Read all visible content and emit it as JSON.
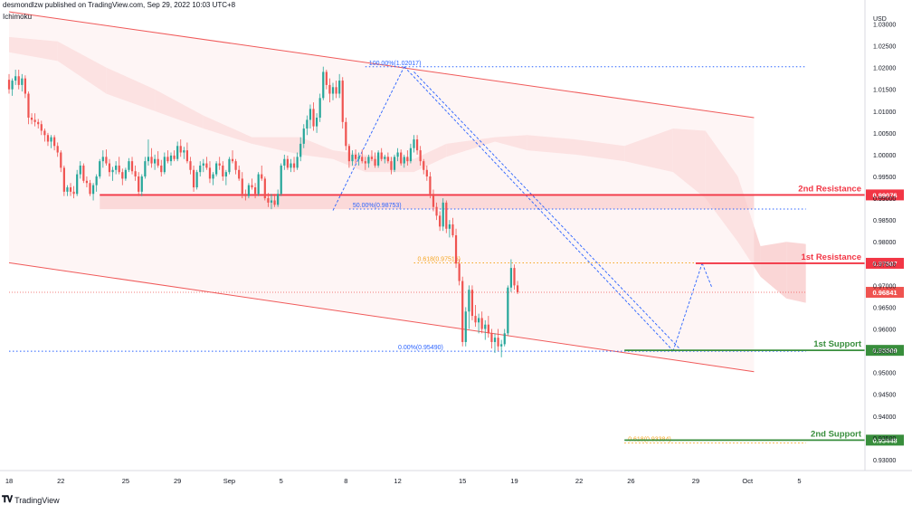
{
  "header": {
    "publisher_text": "desmondlzw published on TradingView.com, Sep 29, 2022 10:03 UTC+8",
    "indicator": "Ichimoku"
  },
  "footer": {
    "brand": "TradingView",
    "logo_icon": "tradingview-logo-icon"
  },
  "colors": {
    "bull": "#26a69a",
    "bear": "#ef5350",
    "resistance": "#f23645",
    "support": "#388e3c",
    "fib_blue": "#2962ff",
    "fib_orange": "#f5a623",
    "channel": "#f05a5a",
    "channel_fill": "#fdecec",
    "kumo_red": "#f9d2d2",
    "kumo_green": "#dcebdc"
  },
  "chart_data": {
    "type": "candlestick",
    "symbol_currency": "USD",
    "ylim": [
      0.9275,
      1.0355
    ],
    "y_ticks": [
      "1.03000",
      "1.02500",
      "1.02000",
      "1.01500",
      "1.01000",
      "1.00500",
      "1.00000",
      "0.99500",
      "0.99000",
      "0.98500",
      "0.98000",
      "0.97500",
      "0.97000",
      "0.96500",
      "0.96000",
      "0.95500",
      "0.95000",
      "0.94500",
      "0.94000",
      "0.93500",
      "0.93000"
    ],
    "x_ticks": [
      {
        "label": "18",
        "bar": 0
      },
      {
        "label": "22",
        "bar": 16
      },
      {
        "label": "25",
        "bar": 36
      },
      {
        "label": "29",
        "bar": 52
      },
      {
        "label": "Sep",
        "bar": 68
      },
      {
        "label": "5",
        "bar": 84
      },
      {
        "label": "8",
        "bar": 104
      },
      {
        "label": "12",
        "bar": 120
      },
      {
        "label": "15",
        "bar": 140
      },
      {
        "label": "19",
        "bar": 156
      },
      {
        "label": "22",
        "bar": 176
      },
      {
        "label": "26",
        "bar": 192
      },
      {
        "label": "29",
        "bar": 212
      },
      {
        "label": "Oct",
        "bar": 228
      },
      {
        "label": "5",
        "bar": 244
      }
    ],
    "ohlc": [
      [
        1.0172,
        1.0185,
        1.014,
        1.015
      ],
      [
        1.015,
        1.0175,
        1.0135,
        1.017
      ],
      [
        1.017,
        1.0195,
        1.016,
        1.018
      ],
      [
        1.018,
        1.0195,
        1.015,
        1.016
      ],
      [
        1.016,
        1.0185,
        1.0145,
        1.0175
      ],
      [
        1.0175,
        1.0182,
        1.013,
        1.014
      ],
      [
        1.014,
        1.0145,
        1.007,
        1.0085
      ],
      [
        1.0085,
        1.0095,
        1.007,
        1.008
      ],
      [
        1.008,
        1.0095,
        1.0065,
        1.0075
      ],
      [
        1.0075,
        1.0082,
        1.006,
        1.007
      ],
      [
        1.007,
        1.0078,
        1.0045,
        1.0055
      ],
      [
        1.0055,
        1.006,
        1.003,
        1.0045
      ],
      [
        1.0045,
        1.005,
        1.002,
        1.003
      ],
      [
        1.003,
        1.0045,
        1.0015,
        1.004
      ],
      [
        1.004,
        1.0045,
        1.001,
        1.002
      ],
      [
        1.002,
        1.0028,
        0.9995,
        1.0005
      ],
      [
        1.0005,
        1.001,
        0.996,
        0.997
      ],
      [
        0.997,
        0.9975,
        0.9905,
        0.9915
      ],
      [
        0.9915,
        0.993,
        0.9905,
        0.9925
      ],
      [
        0.9925,
        0.9935,
        0.9905,
        0.9915
      ],
      [
        0.9915,
        0.9928,
        0.99,
        0.991
      ],
      [
        0.991,
        0.9965,
        0.9905,
        0.9955
      ],
      [
        0.9955,
        0.9985,
        0.9945,
        0.9975
      ],
      [
        0.9975,
        0.998,
        0.9935,
        0.994
      ],
      [
        0.994,
        0.995,
        0.9925,
        0.9935
      ],
      [
        0.9935,
        0.9942,
        0.9905,
        0.991
      ],
      [
        0.991,
        0.9935,
        0.9895,
        0.993
      ],
      [
        0.993,
        0.9955,
        0.9915,
        0.995
      ],
      [
        0.995,
        0.999,
        0.9945,
        0.9985
      ],
      [
        0.9985,
        1.001,
        0.997,
        0.9995
      ],
      [
        0.9995,
        1.0012,
        0.9975,
        0.998
      ],
      [
        0.998,
        0.999,
        0.995,
        0.996
      ],
      [
        0.996,
        0.9972,
        0.994,
        0.9965
      ],
      [
        0.9965,
        0.9985,
        0.9955,
        0.9975
      ],
      [
        0.9975,
        0.9995,
        0.9955,
        0.996
      ],
      [
        0.996,
        0.9968,
        0.993,
        0.9945
      ],
      [
        0.9945,
        0.997,
        0.994,
        0.9965
      ],
      [
        0.9965,
        0.9992,
        0.996,
        0.9985
      ],
      [
        0.9985,
        0.9995,
        0.9955,
        0.9962
      ],
      [
        0.9962,
        0.9975,
        0.994,
        0.995
      ],
      [
        0.995,
        0.996,
        0.9905,
        0.9915
      ],
      [
        0.9915,
        0.9955,
        0.9905,
        0.995
      ],
      [
        0.995,
        0.9995,
        0.9945,
        0.9985
      ],
      [
        0.9985,
        1.0035,
        0.9975,
        0.9995
      ],
      [
        0.9995,
        1.0015,
        0.997,
        0.998
      ],
      [
        0.998,
        1.0,
        0.9965,
        0.999
      ],
      [
        0.999,
        1.0008,
        0.997,
        0.9975
      ],
      [
        0.9975,
        0.9988,
        0.995,
        0.996
      ],
      [
        0.996,
        1.0005,
        0.9955,
        0.9995
      ],
      [
        0.9995,
        1.001,
        0.998,
        0.9985
      ],
      [
        0.9985,
        1.0005,
        0.9975,
        0.9998
      ],
      [
        0.9998,
        1.001,
        0.9985,
        0.999
      ],
      [
        0.999,
        1.003,
        0.9985,
        1.002
      ],
      [
        1.002,
        1.0035,
        0.9995,
        1.0005
      ],
      [
        1.0005,
        1.0018,
        0.999,
        1.001
      ],
      [
        1.001,
        1.0028,
        0.998,
        0.9985
      ],
      [
        0.9985,
        0.9995,
        0.9955,
        0.9965
      ],
      [
        0.9965,
        0.9975,
        0.9915,
        0.9925
      ],
      [
        0.9925,
        0.9965,
        0.992,
        0.996
      ],
      [
        0.996,
        0.9985,
        0.995,
        0.9975
      ],
      [
        0.9975,
        0.999,
        0.996,
        0.998
      ],
      [
        0.998,
        0.9995,
        0.9965,
        0.997
      ],
      [
        0.997,
        0.9985,
        0.9935,
        0.9945
      ],
      [
        0.9945,
        0.996,
        0.993,
        0.9955
      ],
      [
        0.9955,
        0.9985,
        0.995,
        0.998
      ],
      [
        0.998,
        0.9995,
        0.9965,
        0.9975
      ],
      [
        0.9975,
        0.9985,
        0.994,
        0.995
      ],
      [
        0.995,
        0.9965,
        0.993,
        0.996
      ],
      [
        0.996,
        0.9995,
        0.9955,
        0.999
      ],
      [
        0.999,
        1.001,
        0.998,
        0.9985
      ],
      [
        0.9985,
        0.999,
        0.9955,
        0.9965
      ],
      [
        0.9965,
        0.9975,
        0.994,
        0.9945
      ],
      [
        0.9945,
        0.996,
        0.99,
        0.991
      ],
      [
        0.991,
        0.992,
        0.9895,
        0.9905
      ],
      [
        0.9905,
        0.9935,
        0.99,
        0.993
      ],
      [
        0.993,
        0.9945,
        0.992,
        0.9925
      ],
      [
        0.9925,
        0.9935,
        0.99,
        0.991
      ],
      [
        0.991,
        0.996,
        0.9905,
        0.9955
      ],
      [
        0.9955,
        0.9975,
        0.994,
        0.9945
      ],
      [
        0.9945,
        0.995,
        0.9895,
        0.99
      ],
      [
        0.99,
        0.9912,
        0.988,
        0.989
      ],
      [
        0.989,
        0.991,
        0.9875,
        0.9895
      ],
      [
        0.9895,
        0.991,
        0.988,
        0.9885
      ],
      [
        0.9885,
        0.992,
        0.988,
        0.991
      ],
      [
        0.991,
        0.998,
        0.9905,
        0.9975
      ],
      [
        0.9975,
        1.0,
        0.9965,
        0.999
      ],
      [
        0.999,
        0.9998,
        0.9965,
        0.997
      ],
      [
        0.997,
        0.999,
        0.996,
        0.998
      ],
      [
        0.998,
        0.9995,
        0.996,
        0.997
      ],
      [
        0.997,
        1.0005,
        0.9965,
        0.9995
      ],
      [
        0.9995,
        1.004,
        0.9985,
        1.0025
      ],
      [
        1.0025,
        1.007,
        1.0015,
        1.006
      ],
      [
        1.006,
        1.009,
        1.0045,
        1.008
      ],
      [
        1.008,
        1.0115,
        1.006,
        1.0105
      ],
      [
        1.0105,
        1.012,
        1.0055,
        1.0065
      ],
      [
        1.0065,
        1.0095,
        1.005,
        1.0085
      ],
      [
        1.0085,
        1.014,
        1.0075,
        1.013
      ],
      [
        1.013,
        1.0202,
        1.0125,
        1.019
      ],
      [
        1.019,
        1.0195,
        1.015,
        1.016
      ],
      [
        1.016,
        1.0175,
        1.012,
        1.014
      ],
      [
        1.014,
        1.0165,
        1.0125,
        1.0155
      ],
      [
        1.0155,
        1.017,
        1.013,
        1.014
      ],
      [
        1.014,
        1.0185,
        1.013,
        1.017
      ],
      [
        1.017,
        1.0178,
        1.006,
        1.0075
      ],
      [
        1.0075,
        1.0085,
        1.001,
        1.002
      ],
      [
        1.002,
        1.0025,
        0.997,
        0.9985
      ],
      [
        0.9985,
        1.001,
        0.9975,
        1.0
      ],
      [
        1.0,
        1.0012,
        0.998,
        0.999
      ],
      [
        0.999,
        1.0005,
        0.9975,
        0.9995
      ],
      [
        0.9995,
        1.0012,
        0.998,
        0.9985
      ],
      [
        0.9985,
        0.9995,
        0.9965,
        0.998
      ],
      [
        0.998,
        1.0,
        0.997,
        0.9995
      ],
      [
        0.9995,
        1.001,
        0.9985,
        0.999
      ],
      [
        0.999,
        1.0005,
        0.997,
        0.9975
      ],
      [
        0.9975,
        1.001,
        0.997,
        1.0005
      ],
      [
        1.0005,
        1.0015,
        0.9985,
        0.999
      ],
      [
        0.999,
        1.0,
        0.998,
        0.9995
      ],
      [
        0.9995,
        1.0005,
        0.998,
        0.9985
      ],
      [
        0.9985,
        0.9995,
        0.9955,
        0.9965
      ],
      [
        0.9965,
        1.0,
        0.996,
        0.9995
      ],
      [
        0.9995,
        1.0015,
        0.9985,
        1.0005
      ],
      [
        1.0005,
        1.0012,
        0.9975,
        0.998
      ],
      [
        0.998,
        1.0,
        0.997,
        0.9995
      ],
      [
        0.9995,
        1.001,
        0.9975,
        0.9985
      ],
      [
        0.9985,
        1.0025,
        0.998,
        1.0015
      ],
      [
        1.0015,
        1.0045,
        1.0005,
        1.0035
      ],
      [
        1.0035,
        1.0045,
        1.0,
        1.001
      ],
      [
        1.001,
        1.002,
        0.9975,
        0.9985
      ],
      [
        0.9985,
        0.999,
        0.9955,
        0.9965
      ],
      [
        0.9965,
        0.9975,
        0.994,
        0.995
      ],
      [
        0.995,
        0.996,
        0.99,
        0.991
      ],
      [
        0.991,
        0.992,
        0.987,
        0.988
      ],
      [
        0.988,
        0.989,
        0.985,
        0.986
      ],
      [
        0.986,
        0.987,
        0.9825,
        0.9835
      ],
      [
        0.9835,
        0.99,
        0.9825,
        0.989
      ],
      [
        0.989,
        0.9895,
        0.982,
        0.983
      ],
      [
        0.983,
        0.985,
        0.981,
        0.984
      ],
      [
        0.984,
        0.9855,
        0.981,
        0.9815
      ],
      [
        0.9815,
        0.983,
        0.974,
        0.975
      ],
      [
        0.975,
        0.976,
        0.97,
        0.971
      ],
      [
        0.971,
        0.972,
        0.956,
        0.957
      ],
      [
        0.957,
        0.965,
        0.956,
        0.964
      ],
      [
        0.964,
        0.97,
        0.96,
        0.969
      ],
      [
        0.969,
        0.97,
        0.962,
        0.963
      ],
      [
        0.963,
        0.9655,
        0.9605,
        0.9615
      ],
      [
        0.9615,
        0.9635,
        0.959,
        0.9625
      ],
      [
        0.9625,
        0.964,
        0.959,
        0.96
      ],
      [
        0.96,
        0.962,
        0.9575,
        0.961
      ],
      [
        0.961,
        0.963,
        0.958,
        0.959
      ],
      [
        0.959,
        0.96,
        0.9555,
        0.957
      ],
      [
        0.957,
        0.959,
        0.9545,
        0.958
      ],
      [
        0.958,
        0.96,
        0.955,
        0.956
      ],
      [
        0.956,
        0.9575,
        0.9535,
        0.9565
      ],
      [
        0.9565,
        0.96,
        0.956,
        0.959
      ],
      [
        0.959,
        0.97,
        0.9585,
        0.9695
      ],
      [
        0.9695,
        0.976,
        0.9685,
        0.974
      ],
      [
        0.974,
        0.9748,
        0.969,
        0.97
      ],
      [
        0.97,
        0.971,
        0.968,
        0.9684
      ]
    ],
    "channel": {
      "upper": [
        {
          "bar": 0,
          "price": 1.0328
        },
        {
          "bar": 230,
          "price": 1.0085
        }
      ],
      "lower": [
        {
          "bar": 0,
          "price": 0.9752
        },
        {
          "bar": 230,
          "price": 0.9502
        }
      ],
      "start_bar": 0,
      "end_bar": 230
    },
    "ichimoku_cloud": [
      {
        "bar": 0,
        "a": 1.027,
        "b": 1.0235
      },
      {
        "bar": 15,
        "a": 1.026,
        "b": 1.0215
      },
      {
        "bar": 30,
        "a": 1.02,
        "b": 1.014
      },
      {
        "bar": 45,
        "a": 1.015,
        "b": 1.01
      },
      {
        "bar": 60,
        "a": 1.009,
        "b": 1.006
      },
      {
        "bar": 75,
        "a": 1.004,
        "b": 1.0025
      },
      {
        "bar": 90,
        "a": 1.004,
        "b": 1.0
      },
      {
        "bar": 100,
        "a": 1.001,
        "b": 0.999
      },
      {
        "bar": 110,
        "a": 1.0,
        "b": 0.996
      },
      {
        "bar": 125,
        "a": 0.999,
        "b": 0.996
      },
      {
        "bar": 135,
        "a": 1.0025,
        "b": 0.9995
      },
      {
        "bar": 150,
        "a": 1.004,
        "b": 1.003
      },
      {
        "bar": 160,
        "a": 1.0045,
        "b": 1.001
      },
      {
        "bar": 175,
        "a": 1.0035,
        "b": 1.0
      },
      {
        "bar": 190,
        "a": 1.002,
        "b": 0.9985
      },
      {
        "bar": 205,
        "a": 1.006,
        "b": 0.996
      },
      {
        "bar": 215,
        "a": 1.0055,
        "b": 0.99
      },
      {
        "bar": 225,
        "a": 0.995,
        "b": 0.98
      },
      {
        "bar": 232,
        "a": 0.979,
        "b": 0.972
      },
      {
        "bar": 240,
        "a": 0.98,
        "b": 0.967
      },
      {
        "bar": 246,
        "a": 0.9795,
        "b": 0.966
      }
    ],
    "support_zone": {
      "from_bar": 28,
      "to_bar": 230,
      "top": 0.9907,
      "bottom": 0.9875
    },
    "fib_lines": [
      {
        "label": "100.00%(1.02017)",
        "price": 1.02017,
        "from_bar": 110,
        "to_bar": 246,
        "color": "fib_blue"
      },
      {
        "label": "50.00%(0.98753)",
        "price": 0.98753,
        "from_bar": 105,
        "to_bar": 246,
        "color": "fib_blue"
      },
      {
        "label": "0.00%(0.95490)",
        "price": 0.9549,
        "from_bar": 0,
        "to_bar": 246,
        "color": "fib_blue"
      },
      {
        "label": "0.618(0.97516)",
        "price": 0.97516,
        "from_bar": 125,
        "to_bar": 246,
        "color": "fib_orange"
      },
      {
        "label": "0.618(0.93384)",
        "price": 0.93384,
        "from_bar": 190,
        "to_bar": 246,
        "color": "fib_orange"
      }
    ],
    "current_price_line": {
      "price": 0.96841,
      "from_bar": 0,
      "to_bar": 246
    },
    "levels": [
      {
        "name": "2nd Resistance",
        "price": 0.99076,
        "price_label": "0.99076",
        "type": "resistance",
        "from_bar": 28,
        "to_bar": 246
      },
      {
        "name": "1st Resistance",
        "price": 0.97507,
        "price_label": "0.97507",
        "type": "resistance",
        "from_bar": 212,
        "to_bar": 246
      },
      {
        "name": "1st Support",
        "price": 0.95509,
        "price_label": "0.95509",
        "type": "support",
        "from_bar": 190,
        "to_bar": 246
      },
      {
        "name": "2nd Support",
        "price": 0.93448,
        "price_label": "0.93448",
        "type": "support",
        "from_bar": 190,
        "to_bar": 246
      }
    ],
    "current_price_label": "0.96841",
    "trend_lines": [
      [
        {
          "bar": 100,
          "price": 0.9872
        },
        {
          "bar": 122,
          "price": 1.0202
        }
      ],
      [
        {
          "bar": 122,
          "price": 1.0202
        },
        {
          "bar": 205,
          "price": 0.955
        }
      ],
      [
        {
          "bar": 125,
          "price": 1.019
        },
        {
          "bar": 207,
          "price": 0.9555
        }
      ],
      [
        {
          "bar": 205,
          "price": 0.9549
        },
        {
          "bar": 214,
          "price": 0.9751
        }
      ],
      [
        {
          "bar": 214,
          "price": 0.9751
        },
        {
          "bar": 217,
          "price": 0.9695
        }
      ]
    ]
  }
}
